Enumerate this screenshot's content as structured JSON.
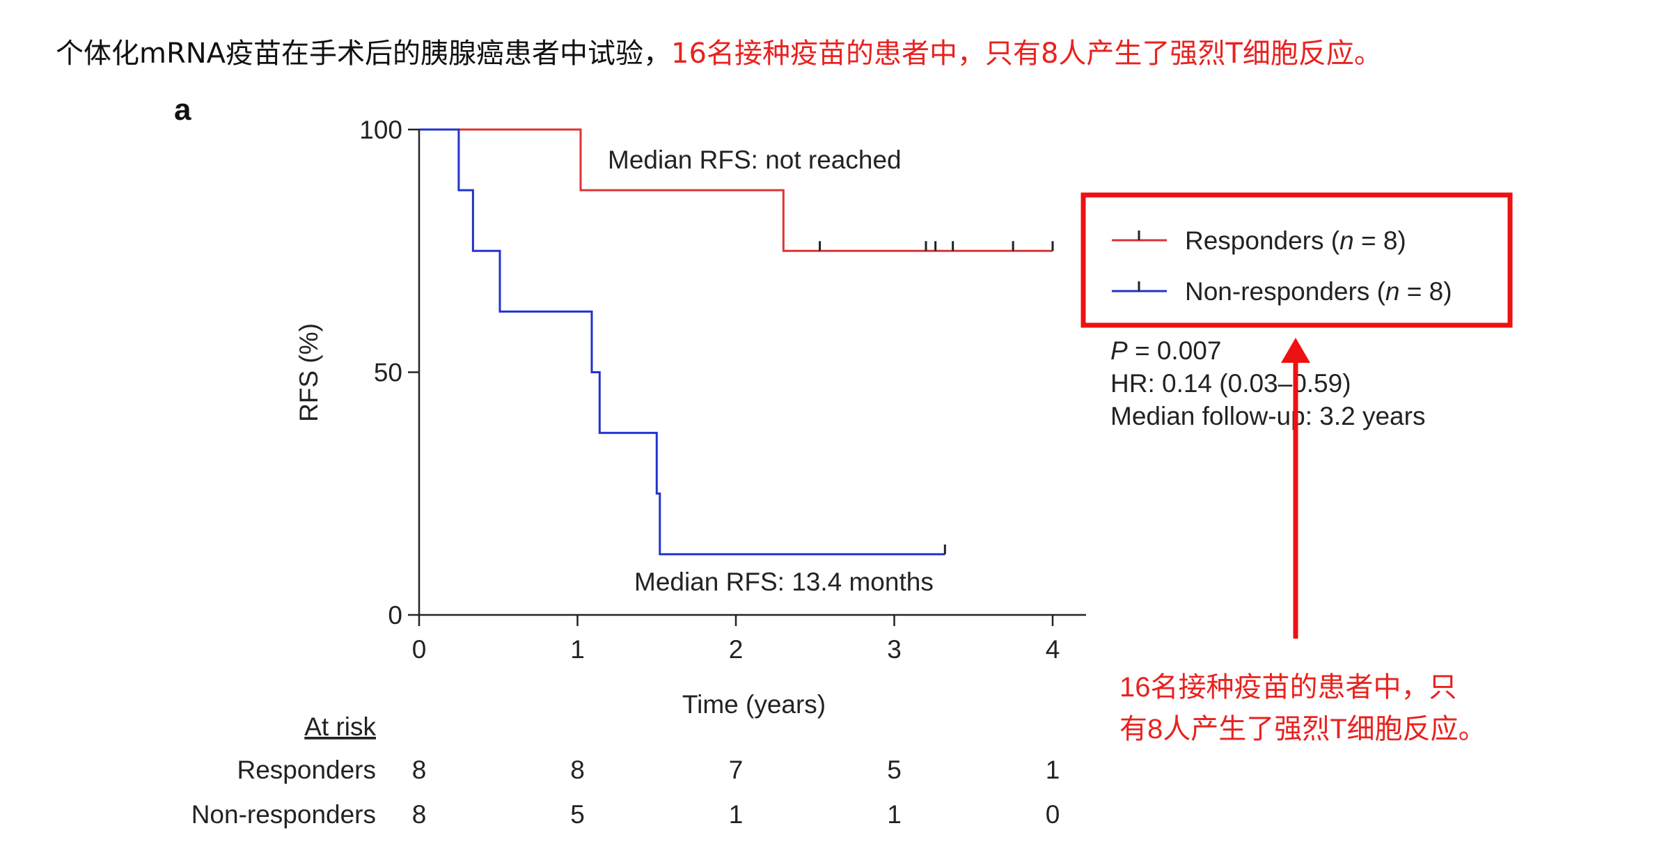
{
  "headline": {
    "black": "个体化mRNA疫苗在手术后的胰腺癌患者中试验，",
    "red": "16名接种疫苗的患者中，只有8人产生了强烈T细胞反应。"
  },
  "panel_label": "a",
  "chart_data": {
    "type": "line",
    "subtype": "kaplan-meier step",
    "xlabel": "Time (years)",
    "ylabel": "RFS (%)",
    "xlim": [
      0,
      4.15
    ],
    "ylim": [
      0,
      100
    ],
    "x_ticks": [
      0,
      1,
      2,
      3,
      4
    ],
    "y_ticks": [
      0,
      50,
      100
    ],
    "grid": false,
    "legend_position": "right",
    "series": [
      {
        "name": "Responders (n = 8)",
        "legend_prefix": "Responders (",
        "legend_suffix": " = 8)",
        "color": "#dd3333",
        "steps": [
          [
            0,
            100
          ],
          [
            1.02,
            100
          ],
          [
            1.02,
            87.5
          ],
          [
            2.3,
            87.5
          ],
          [
            2.3,
            75
          ],
          [
            4.0,
            75
          ]
        ],
        "censored": [
          [
            2.53,
            75
          ],
          [
            3.2,
            75
          ],
          [
            3.26,
            75
          ],
          [
            3.37,
            75
          ],
          [
            3.75,
            75
          ],
          [
            4.0,
            75
          ]
        ]
      },
      {
        "name": "Non-responders (n = 8)",
        "legend_prefix": "Non-responders (",
        "legend_suffix": " = 8)",
        "color": "#2233cc",
        "steps": [
          [
            0,
            100
          ],
          [
            0.25,
            100
          ],
          [
            0.25,
            87.5
          ],
          [
            0.34,
            87.5
          ],
          [
            0.34,
            75
          ],
          [
            0.51,
            75
          ],
          [
            0.51,
            62.5
          ],
          [
            1.09,
            62.5
          ],
          [
            1.09,
            50
          ],
          [
            1.14,
            50
          ],
          [
            1.14,
            37.5
          ],
          [
            1.5,
            37.5
          ],
          [
            1.5,
            25
          ],
          [
            1.52,
            25
          ],
          [
            1.52,
            12.5
          ],
          [
            3.32,
            12.5
          ]
        ],
        "censored": [
          [
            3.32,
            12.5
          ]
        ]
      }
    ],
    "annotations": {
      "responders_median": "Median RFS: not reached",
      "nonresponders_median": "Median RFS: 13.4 months"
    },
    "stats": {
      "p_label": "P",
      "p_rest": " = 0.007",
      "hr": "HR: 0.14 (0.03–0.59)",
      "followup": "Median follow-up: 3.2 years"
    },
    "at_risk": {
      "title": "At risk",
      "times": [
        0,
        1,
        2,
        3,
        4
      ],
      "rows": [
        {
          "label": "Responders",
          "values": [
            "8",
            "8",
            "7",
            "5",
            "1"
          ]
        },
        {
          "label": "Non-responders",
          "values": [
            "8",
            "5",
            "1",
            "1",
            "0"
          ]
        }
      ]
    }
  },
  "callout": {
    "line1": "16名接种疫苗的患者中，只",
    "line2": "有8人产生了强烈T细胞反应。",
    "border_color": "#ee1111",
    "text_color": "#e8221f"
  }
}
